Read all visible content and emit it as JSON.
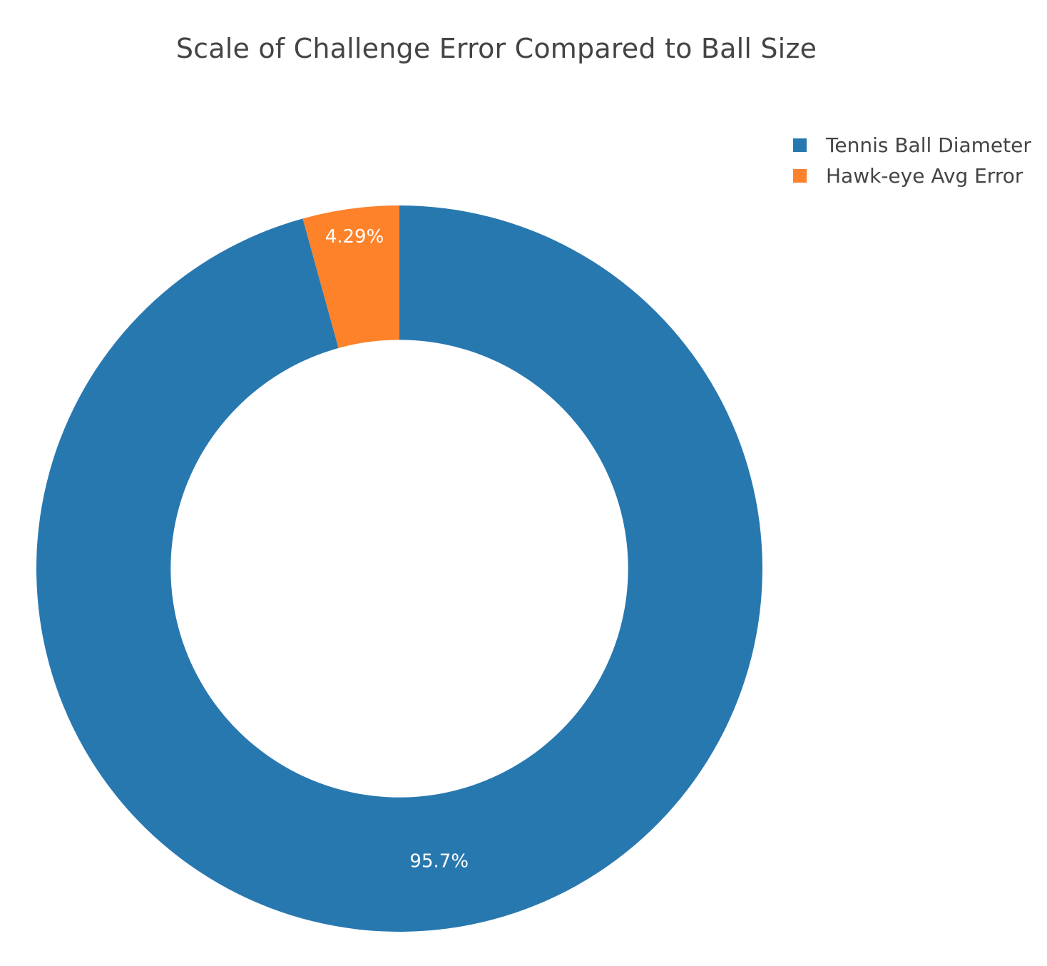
{
  "chart_data": {
    "type": "pie",
    "title": "Scale of Challenge Error Compared to Ball Size",
    "hole": 0.63,
    "categories": [
      "Tennis Ball Diameter",
      "Hawk-eye Avg Error"
    ],
    "values": [
      95.71,
      4.29
    ],
    "labels": [
      "95.7%",
      "4.29%"
    ],
    "colors": [
      "#2878b0",
      "#fe822a"
    ],
    "direction": "clockwise",
    "legend_position": "top-right"
  }
}
